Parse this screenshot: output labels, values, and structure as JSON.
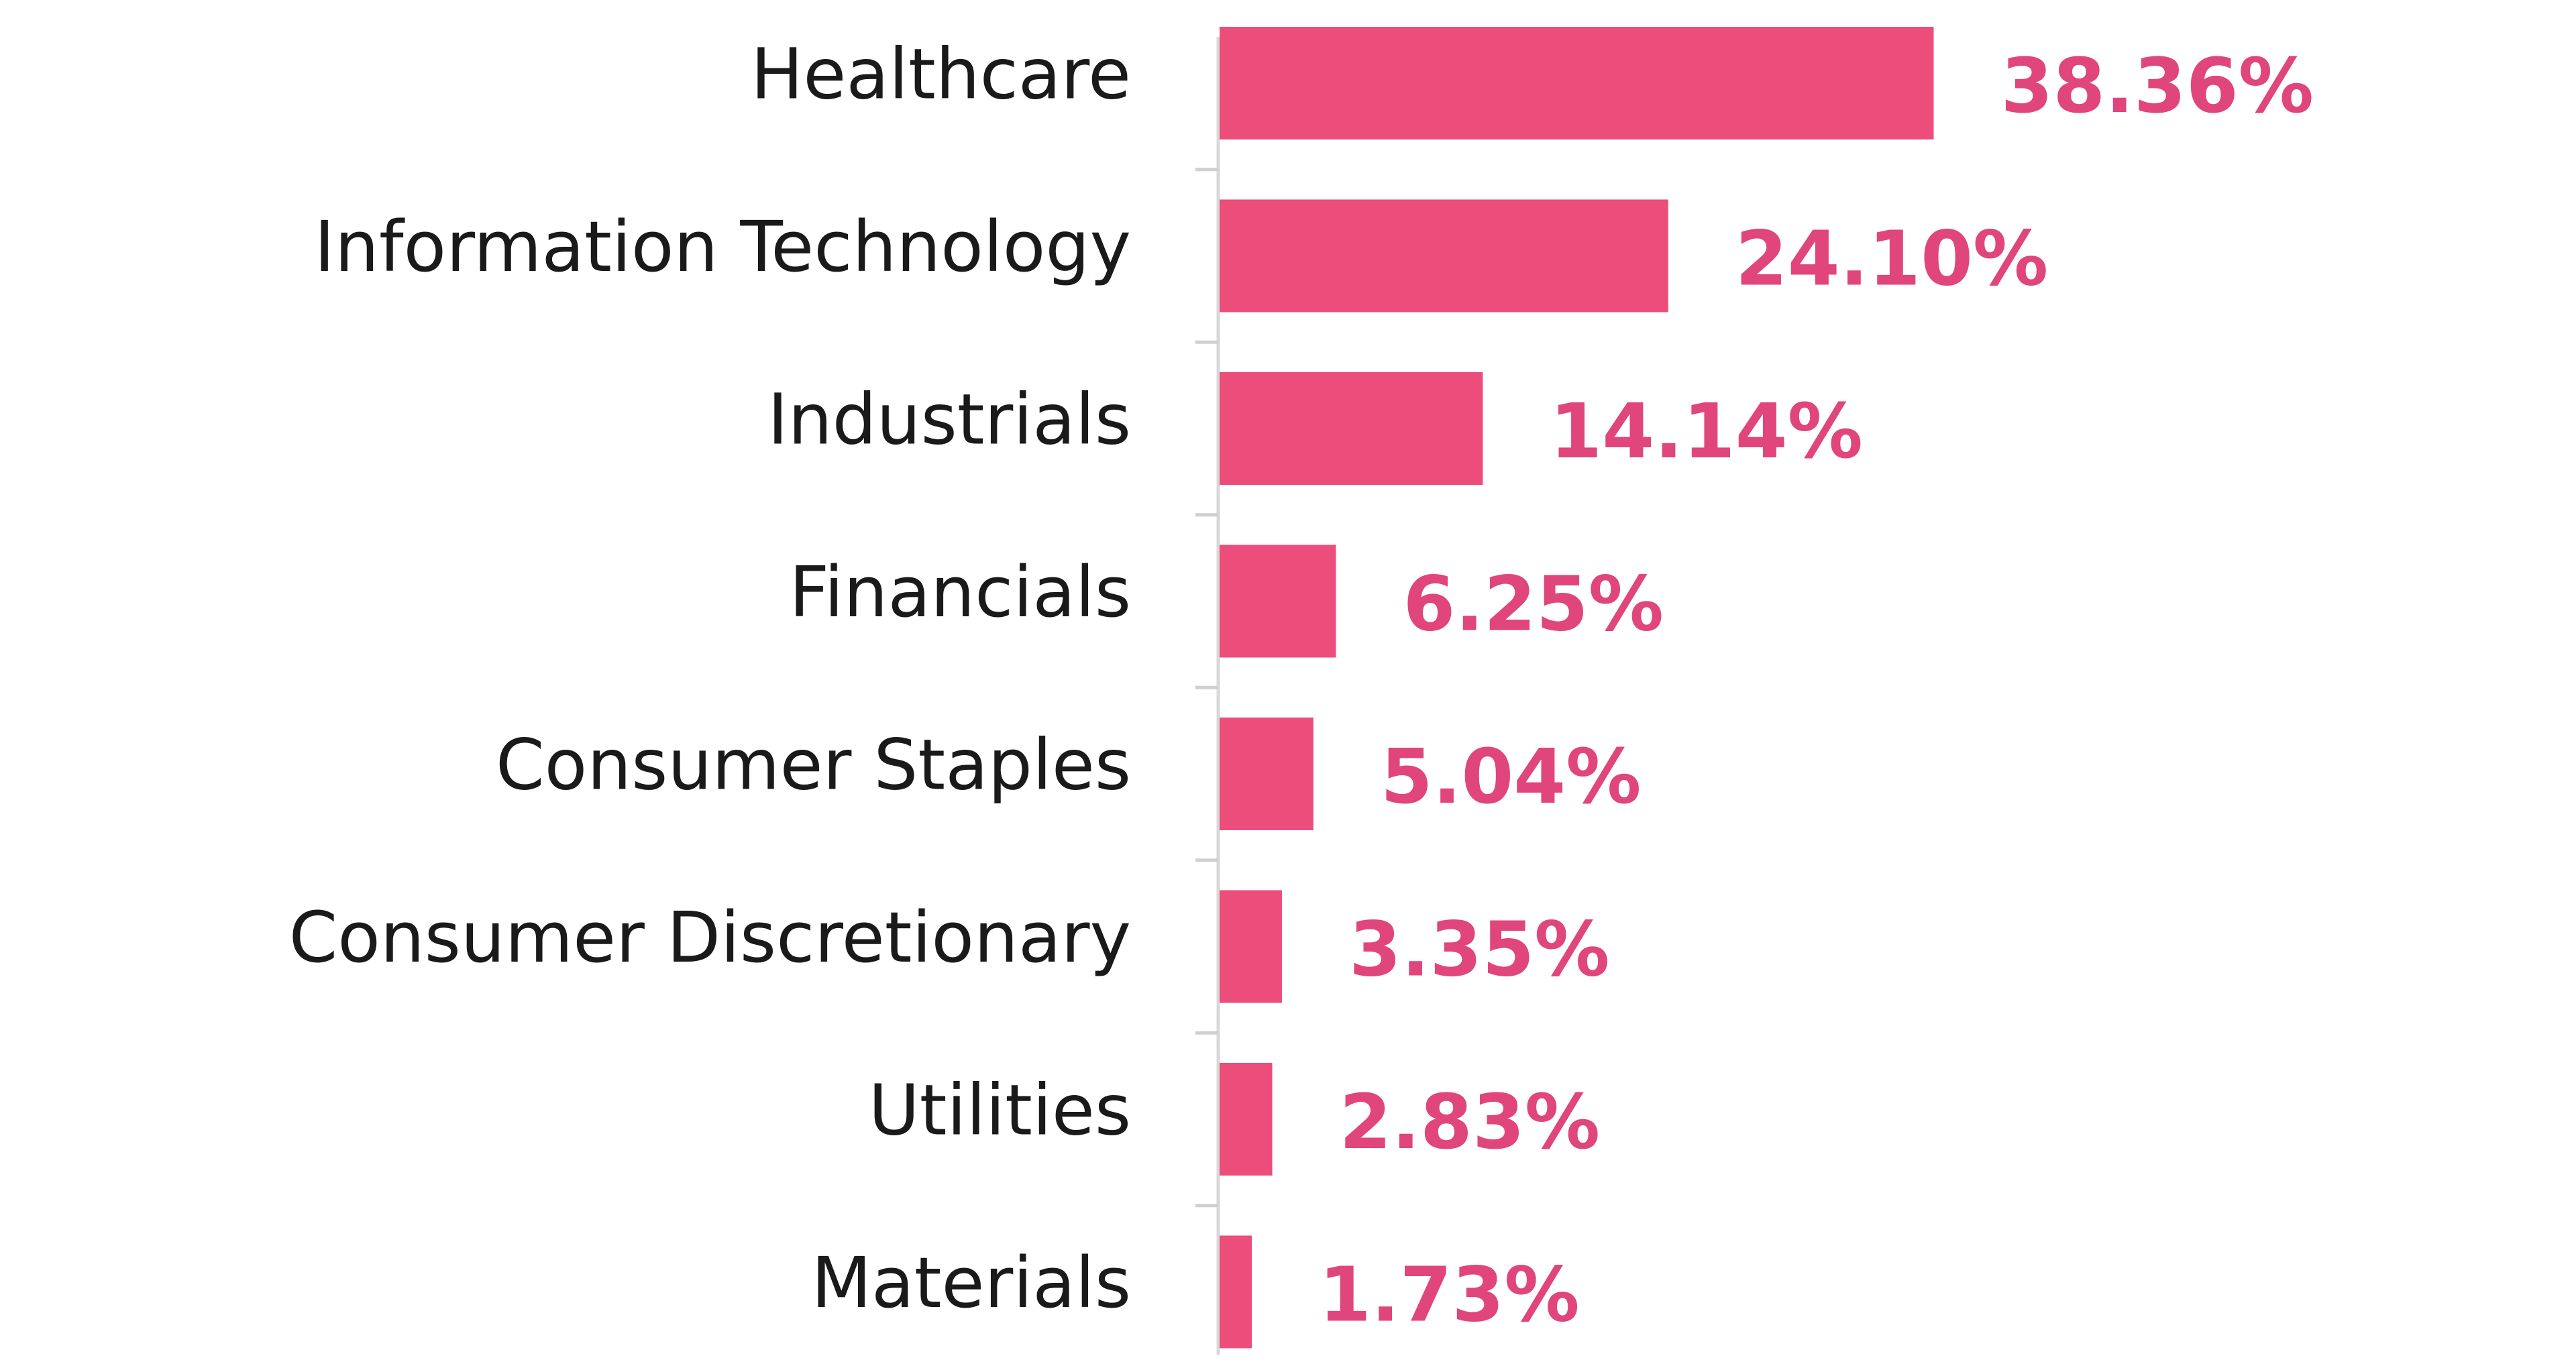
{
  "chart_data": {
    "type": "bar",
    "orientation": "horizontal",
    "categories": [
      "Healthcare",
      "Information Technology",
      "Industrials",
      "Financials",
      "Consumer Staples",
      "Consumer Discretionary",
      "Utilities",
      "Materials"
    ],
    "values": [
      38.36,
      24.1,
      14.14,
      6.25,
      5.04,
      3.35,
      2.83,
      1.73
    ],
    "value_labels": [
      "38.36%",
      "24.10%",
      "14.14%",
      "6.25%",
      "5.04%",
      "3.35%",
      "2.83%",
      "1.73%"
    ],
    "color": "#ec4d7b"
  }
}
